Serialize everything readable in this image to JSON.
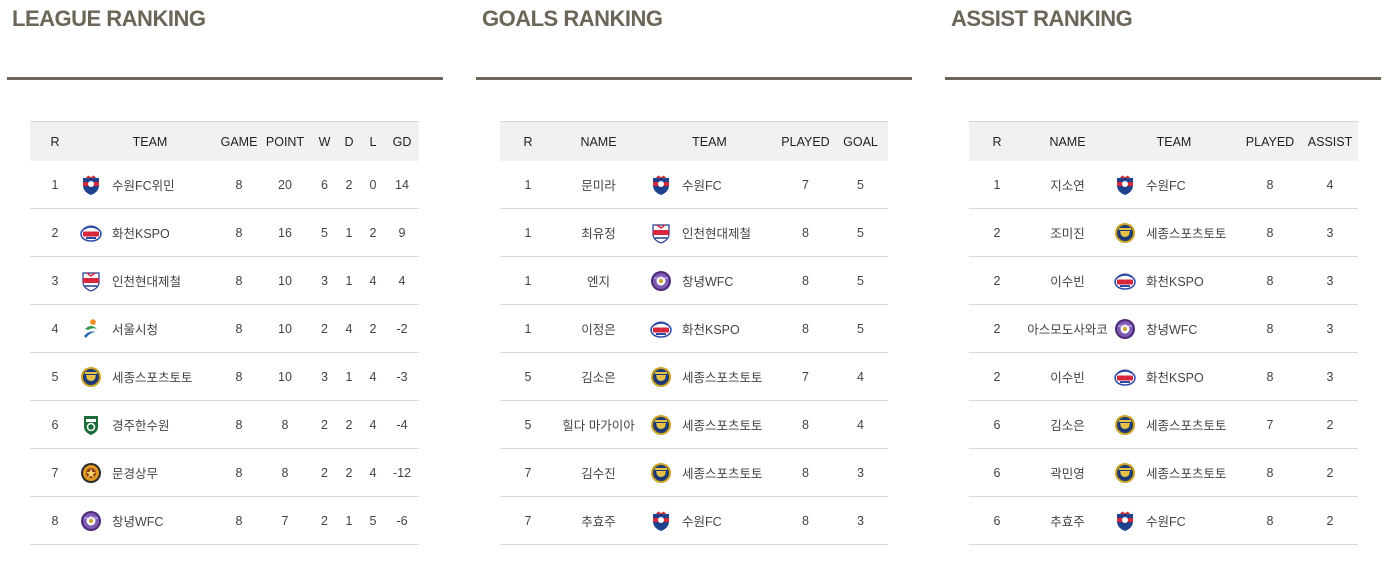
{
  "colors": {
    "title": "#6b6658",
    "rule": "#6b6658",
    "header_bg": "#f1f1f1",
    "row_border": "#d9d9d9"
  },
  "league": {
    "title": "LEAGUE RANKING",
    "headers": [
      "R",
      "TEAM",
      "GAME",
      "POINT",
      "W",
      "D",
      "L",
      "GD"
    ],
    "rows": [
      {
        "r": "1",
        "logo": "suwon-fc-logo",
        "team": "수원FC위민",
        "game": "8",
        "point": "20",
        "w": "6",
        "d": "2",
        "l": "0",
        "gd": "14"
      },
      {
        "r": "2",
        "logo": "hwacheon-kspo-logo",
        "team": "화천KSPO",
        "game": "8",
        "point": "16",
        "w": "5",
        "d": "1",
        "l": "2",
        "gd": "9"
      },
      {
        "r": "3",
        "logo": "incheon-hyundai-steel-logo",
        "team": "인천현대제철",
        "game": "8",
        "point": "10",
        "w": "3",
        "d": "1",
        "l": "4",
        "gd": "4"
      },
      {
        "r": "4",
        "logo": "seoul-city-logo",
        "team": "서울시청",
        "game": "8",
        "point": "10",
        "w": "2",
        "d": "4",
        "l": "2",
        "gd": "-2"
      },
      {
        "r": "5",
        "logo": "sejong-sportstoto-logo",
        "team": "세종스포츠토토",
        "game": "8",
        "point": "10",
        "w": "3",
        "d": "1",
        "l": "4",
        "gd": "-3"
      },
      {
        "r": "6",
        "logo": "gyeongju-khnp-logo",
        "team": "경주한수원",
        "game": "8",
        "point": "8",
        "w": "2",
        "d": "2",
        "l": "4",
        "gd": "-4"
      },
      {
        "r": "7",
        "logo": "mungyeong-sangmu-logo",
        "team": "문경상무",
        "game": "8",
        "point": "8",
        "w": "2",
        "d": "2",
        "l": "4",
        "gd": "-12"
      },
      {
        "r": "8",
        "logo": "changnyeong-wfc-logo",
        "team": "창녕WFC",
        "game": "8",
        "point": "7",
        "w": "2",
        "d": "1",
        "l": "5",
        "gd": "-6"
      }
    ]
  },
  "goals": {
    "title": "GOALS RANKING",
    "headers": [
      "R",
      "NAME",
      "TEAM",
      "PLAYED",
      "GOAL"
    ],
    "rows": [
      {
        "r": "1",
        "name": "문미라",
        "logo": "suwon-fc-logo",
        "team": "수원FC",
        "played": "7",
        "value": "5"
      },
      {
        "r": "1",
        "name": "최유정",
        "logo": "incheon-hyundai-steel-logo",
        "team": "인천현대제철",
        "played": "8",
        "value": "5"
      },
      {
        "r": "1",
        "name": "엔지",
        "logo": "changnyeong-wfc-logo",
        "team": "창녕WFC",
        "played": "8",
        "value": "5"
      },
      {
        "r": "1",
        "name": "이정은",
        "logo": "hwacheon-kspo-logo",
        "team": "화천KSPO",
        "played": "8",
        "value": "5"
      },
      {
        "r": "5",
        "name": "김소은",
        "logo": "sejong-sportstoto-logo",
        "team": "세종스포츠토토",
        "played": "7",
        "value": "4"
      },
      {
        "r": "5",
        "name": "힐다 마가이아",
        "logo": "sejong-sportstoto-logo",
        "team": "세종스포츠토토",
        "played": "8",
        "value": "4"
      },
      {
        "r": "7",
        "name": "김수진",
        "logo": "sejong-sportstoto-logo",
        "team": "세종스포츠토토",
        "played": "8",
        "value": "3"
      },
      {
        "r": "7",
        "name": "추효주",
        "logo": "suwon-fc-logo",
        "team": "수원FC",
        "played": "8",
        "value": "3"
      }
    ]
  },
  "assist": {
    "title": "ASSIST RANKING",
    "headers": [
      "R",
      "NAME",
      "TEAM",
      "PLAYED",
      "ASSIST"
    ],
    "rows": [
      {
        "r": "1",
        "name": "지소연",
        "logo": "suwon-fc-logo",
        "team": "수원FC",
        "played": "8",
        "value": "4"
      },
      {
        "r": "2",
        "name": "조미진",
        "logo": "sejong-sportstoto-logo",
        "team": "세종스포츠토토",
        "played": "8",
        "value": "3"
      },
      {
        "r": "2",
        "name": "이수빈",
        "logo": "hwacheon-kspo-logo",
        "team": "화천KSPO",
        "played": "8",
        "value": "3"
      },
      {
        "r": "2",
        "name": "아스모도사와코",
        "logo": "changnyeong-wfc-logo",
        "team": "창녕WFC",
        "played": "8",
        "value": "3"
      },
      {
        "r": "2",
        "name": "이수빈",
        "logo": "hwacheon-kspo-logo",
        "team": "화천KSPO",
        "played": "8",
        "value": "3"
      },
      {
        "r": "6",
        "name": "김소은",
        "logo": "sejong-sportstoto-logo",
        "team": "세종스포츠토토",
        "played": "7",
        "value": "2"
      },
      {
        "r": "6",
        "name": "곽민영",
        "logo": "sejong-sportstoto-logo",
        "team": "세종스포츠토토",
        "played": "8",
        "value": "2"
      },
      {
        "r": "6",
        "name": "추효주",
        "logo": "suwon-fc-logo",
        "team": "수원FC",
        "played": "8",
        "value": "2"
      }
    ]
  }
}
